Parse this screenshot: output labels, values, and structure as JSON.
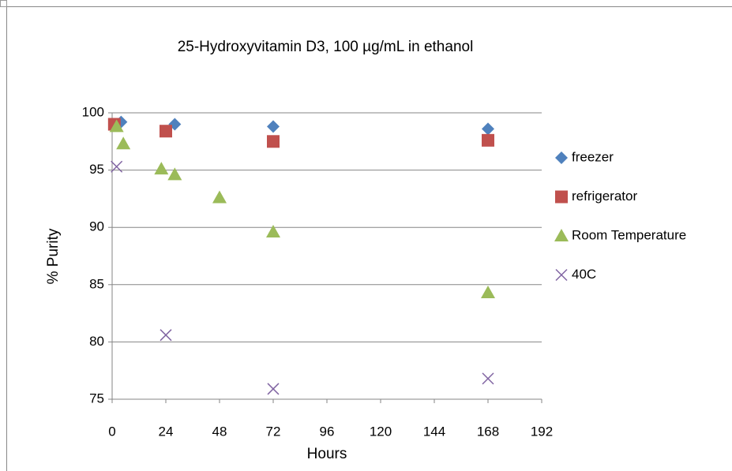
{
  "chart_data": {
    "type": "scatter",
    "title": "25-Hydroxyvitamin D3, 100 µg/mL in ethanol",
    "x_label": "Hours",
    "y_label": "% Purity",
    "xlim": [
      0,
      192
    ],
    "xticks": [
      0,
      24,
      48,
      72,
      96,
      120,
      144,
      168,
      192
    ],
    "ylim": [
      75,
      100
    ],
    "yticks": [
      75,
      80,
      85,
      90,
      95,
      100
    ],
    "grid": true,
    "legend": "right",
    "series": [
      {
        "name": "freezer",
        "color": "#4f81bd",
        "marker": "diamond",
        "x": [
          4,
          28,
          72,
          168
        ],
        "values": [
          99.2,
          99.0,
          98.8,
          98.6
        ]
      },
      {
        "name": "refrigerator",
        "color": "#c0504d",
        "marker": "square",
        "x": [
          1,
          24,
          72,
          168
        ],
        "values": [
          99.0,
          98.4,
          97.5,
          97.6
        ]
      },
      {
        "name": "Room Temperature",
        "color": "#9bbb59",
        "marker": "triangle",
        "x": [
          2,
          5,
          22,
          28,
          48,
          72,
          168
        ],
        "values": [
          98.8,
          97.3,
          95.1,
          94.6,
          92.6,
          89.6,
          84.3
        ]
      },
      {
        "name": "40C",
        "color": "#8064a2",
        "marker": "x",
        "x": [
          2,
          24,
          72,
          168
        ],
        "values": [
          95.3,
          80.6,
          75.9,
          76.8
        ]
      }
    ]
  }
}
